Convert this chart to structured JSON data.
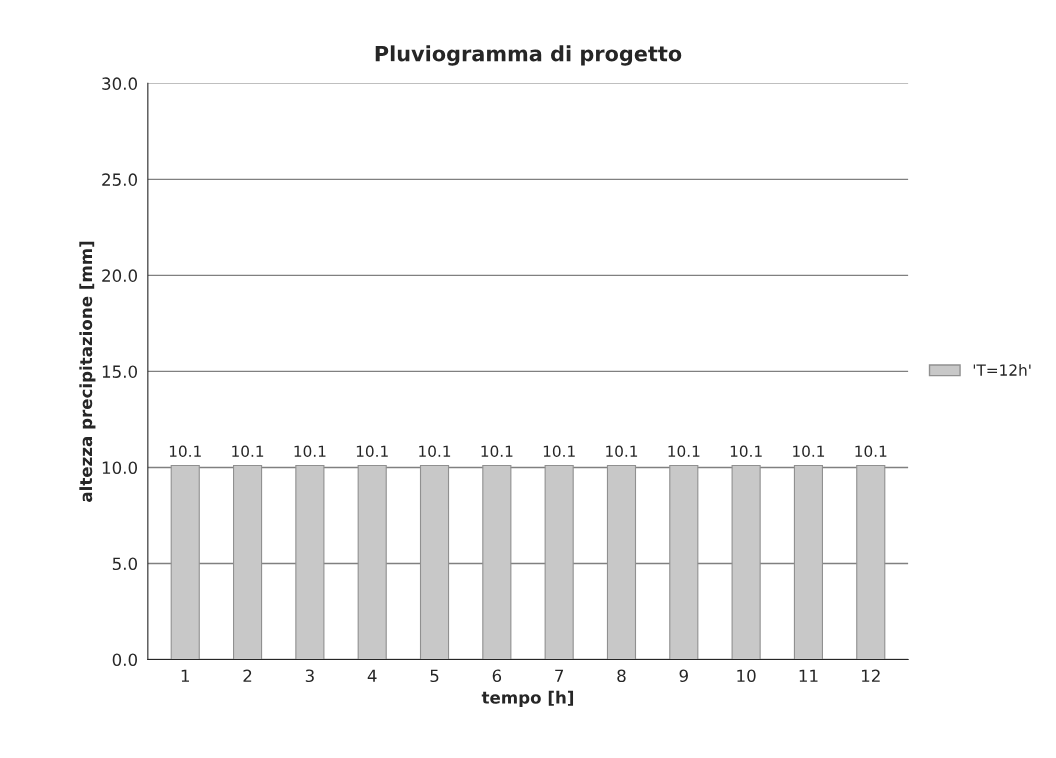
{
  "chart_data": {
    "type": "bar",
    "title": "Pluviogramma di progetto",
    "xlabel": "tempo [h]",
    "ylabel": "altezza precipitazione [mm]",
    "categories": [
      "1",
      "2",
      "3",
      "4",
      "5",
      "6",
      "7",
      "8",
      "9",
      "10",
      "11",
      "12"
    ],
    "series": [
      {
        "name": "'T=12h'",
        "color": "#c8c8c8",
        "values": [
          10.1,
          10.1,
          10.1,
          10.1,
          10.1,
          10.1,
          10.1,
          10.1,
          10.1,
          10.1,
          10.1,
          10.1
        ]
      }
    ],
    "ylim": [
      0,
      30
    ],
    "yticks": [
      {
        "value": 0,
        "label": "0.0"
      },
      {
        "value": 5,
        "label": "5.0"
      },
      {
        "value": 10,
        "label": "10.0"
      },
      {
        "value": 15,
        "label": "15.0"
      },
      {
        "value": 20,
        "label": "20.0"
      },
      {
        "value": 25,
        "label": "25.0"
      },
      {
        "value": 30,
        "label": "30.0"
      }
    ],
    "grid": "y",
    "legend": "right",
    "data_labels": true
  }
}
